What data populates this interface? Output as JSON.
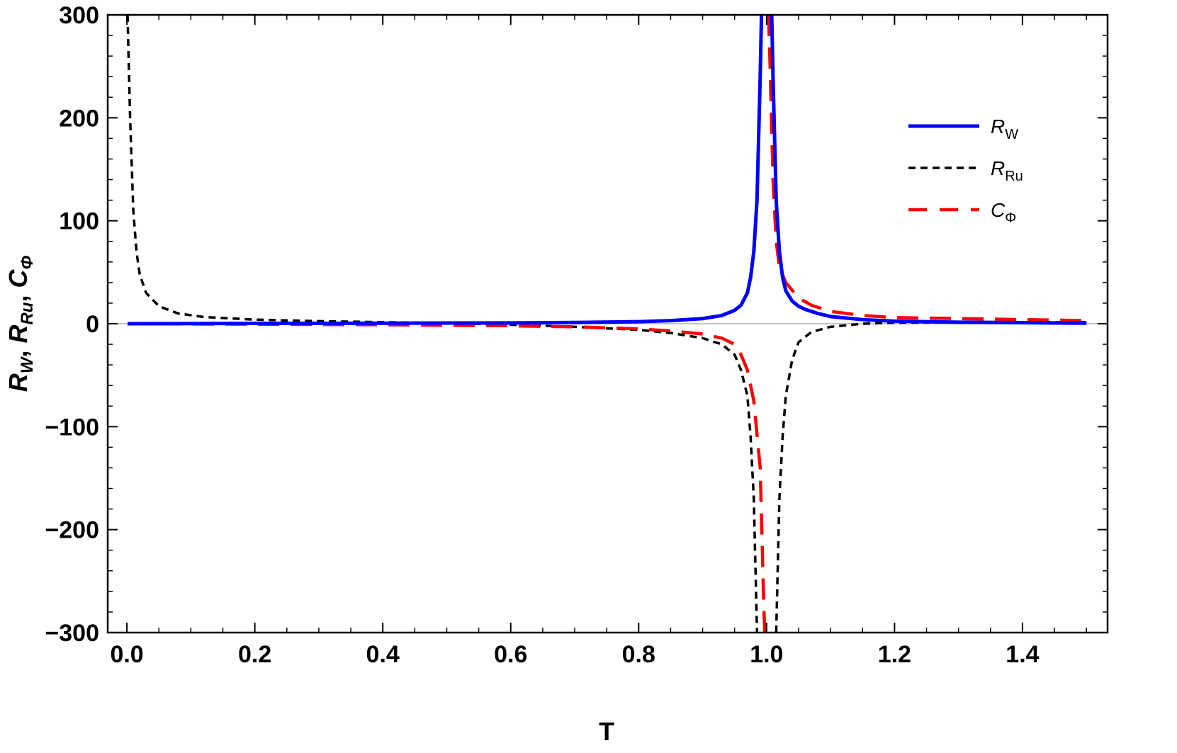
{
  "chart_data": {
    "type": "line",
    "xlabel": "T",
    "ylabel": {
      "parts": [
        {
          "text": "R",
          "sub": "W"
        },
        {
          "text": "R",
          "sub": "Ru"
        },
        {
          "text": "C",
          "sub": "Φ"
        }
      ]
    },
    "xlim": [
      0,
      1.5
    ],
    "ylim": [
      -300,
      300
    ],
    "x_ticks": [
      "0.0",
      "0.2",
      "0.4",
      "0.6",
      "0.8",
      "1.0",
      "1.2",
      "1.4"
    ],
    "x_tick_values": [
      0,
      0.2,
      0.4,
      0.6,
      0.8,
      1.0,
      1.2,
      1.4
    ],
    "y_ticks": [
      "300",
      "200",
      "100",
      "0",
      "−100",
      "−200",
      "−300"
    ],
    "y_tick_values": [
      300,
      200,
      100,
      0,
      -100,
      -200,
      -300
    ],
    "grid": false,
    "legend_position": "right",
    "series": [
      {
        "name": "R",
        "sub": "W",
        "color": "#0000ff",
        "style": "solid",
        "points": [
          [
            0.001,
            0.0
          ],
          [
            0.2,
            0.3
          ],
          [
            0.4,
            0.5
          ],
          [
            0.6,
            0.8
          ],
          [
            0.7,
            1.2
          ],
          [
            0.8,
            2.0
          ],
          [
            0.85,
            3.0
          ],
          [
            0.9,
            5.0
          ],
          [
            0.93,
            8.0
          ],
          [
            0.95,
            13.0
          ],
          [
            0.96,
            18.0
          ],
          [
            0.97,
            30.0
          ],
          [
            0.975,
            45.0
          ],
          [
            0.98,
            70.0
          ],
          [
            0.985,
            120.0
          ],
          [
            0.99,
            240.0
          ],
          [
            0.992,
            300.0
          ]
        ],
        "points_right": [
          [
            1.008,
            300.0
          ],
          [
            1.01,
            240.0
          ],
          [
            1.015,
            120.0
          ],
          [
            1.02,
            70.0
          ],
          [
            1.025,
            45.0
          ],
          [
            1.03,
            32.0
          ],
          [
            1.04,
            22.0
          ],
          [
            1.05,
            17.0
          ],
          [
            1.06,
            14.0
          ],
          [
            1.08,
            10.0
          ],
          [
            1.1,
            7.0
          ],
          [
            1.15,
            4.0
          ],
          [
            1.2,
            2.5
          ],
          [
            1.3,
            1.5
          ],
          [
            1.4,
            1.0
          ],
          [
            1.5,
            0.5
          ]
        ]
      },
      {
        "name": "R",
        "sub": "Ru",
        "color": "#000000",
        "style": "short-dash",
        "points": [
          [
            0.001,
            300.0
          ],
          [
            0.005,
            200.0
          ],
          [
            0.01,
            110.0
          ],
          [
            0.015,
            70.0
          ],
          [
            0.02,
            48.0
          ],
          [
            0.03,
            30.0
          ],
          [
            0.05,
            17.0
          ],
          [
            0.08,
            10.0
          ],
          [
            0.12,
            6.5
          ],
          [
            0.2,
            4.0
          ],
          [
            0.3,
            2.5
          ],
          [
            0.4,
            1.5
          ],
          [
            0.5,
            0.5
          ],
          [
            0.6,
            -1.0
          ],
          [
            0.7,
            -3.0
          ],
          [
            0.8,
            -6.0
          ],
          [
            0.85,
            -9.0
          ],
          [
            0.9,
            -14.0
          ],
          [
            0.93,
            -20.0
          ],
          [
            0.95,
            -30.0
          ],
          [
            0.96,
            -45.0
          ],
          [
            0.97,
            -70.0
          ],
          [
            0.975,
            -110.0
          ],
          [
            0.98,
            -170.0
          ],
          [
            0.985,
            -300.0
          ]
        ],
        "points_right": [
          [
            1.015,
            -300.0
          ],
          [
            1.02,
            -170.0
          ],
          [
            1.025,
            -110.0
          ],
          [
            1.03,
            -70.0
          ],
          [
            1.04,
            -35.0
          ],
          [
            1.05,
            -18.0
          ],
          [
            1.07,
            -8.0
          ],
          [
            1.1,
            -3.0
          ],
          [
            1.15,
            0.0
          ],
          [
            1.2,
            1.0
          ],
          [
            1.3,
            1.5
          ],
          [
            1.4,
            1.5
          ],
          [
            1.5,
            1.5
          ]
        ]
      },
      {
        "name": "C",
        "sub": "Φ",
        "color": "#ff0000",
        "style": "long-dash",
        "points": [
          [
            0.001,
            0.0
          ],
          [
            0.2,
            -0.5
          ],
          [
            0.4,
            -1.0
          ],
          [
            0.6,
            -2.0
          ],
          [
            0.7,
            -3.0
          ],
          [
            0.8,
            -5.0
          ],
          [
            0.85,
            -7.0
          ],
          [
            0.9,
            -10.0
          ],
          [
            0.93,
            -14.0
          ],
          [
            0.95,
            -20.0
          ],
          [
            0.96,
            -30.0
          ],
          [
            0.97,
            -45.0
          ],
          [
            0.98,
            -75.0
          ],
          [
            0.99,
            -140.0
          ],
          [
            0.995,
            -260.0
          ],
          [
            0.997,
            -300.0
          ]
        ],
        "points_right": [
          [
            1.003,
            300.0
          ],
          [
            1.005,
            260.0
          ],
          [
            1.01,
            140.0
          ],
          [
            1.015,
            80.0
          ],
          [
            1.02,
            55.0
          ],
          [
            1.03,
            40.0
          ],
          [
            1.05,
            25.0
          ],
          [
            1.07,
            18.0
          ],
          [
            1.1,
            12.0
          ],
          [
            1.15,
            8.0
          ],
          [
            1.2,
            6.0
          ],
          [
            1.3,
            5.0
          ],
          [
            1.4,
            4.0
          ],
          [
            1.5,
            3.0
          ]
        ]
      }
    ]
  }
}
